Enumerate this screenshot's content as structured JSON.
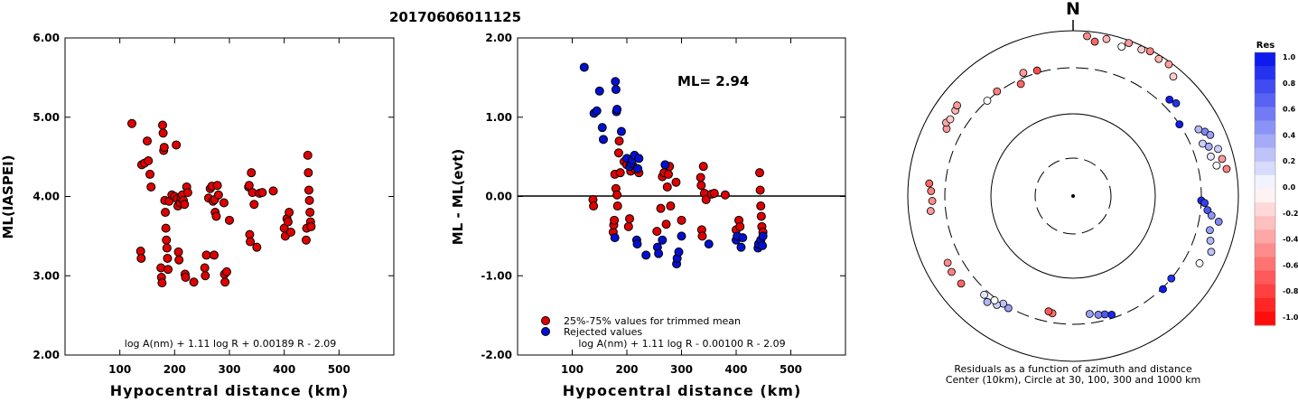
{
  "title": "20170606011125",
  "colors": {
    "red": "#e00000",
    "blue": "#0010d0",
    "axis": "#000000",
    "point_stroke": "#000000"
  },
  "chart_data": [
    {
      "type": "scatter",
      "title": "",
      "xlabel": "Hypocentral distance (km)",
      "ylabel": "ML(IASPEI)",
      "xlim": [
        0,
        600
      ],
      "ylim": [
        2.0,
        6.0
      ],
      "xticks": [
        "100",
        "200",
        "300",
        "400",
        "500"
      ],
      "yticks": [
        "2.00",
        "3.00",
        "4.00",
        "5.00",
        "6.00"
      ],
      "annotation": "log A(nm) + 1.11 log R + 0.00189 R - 2.09",
      "series": [
        {
          "color": "red",
          "points": [
            [
              122,
              4.92
            ],
            [
              138,
              3.31
            ],
            [
              139,
              3.22
            ],
            [
              140,
              4.4
            ],
            [
              145,
              4.42
            ],
            [
              150,
              4.7
            ],
            [
              152,
              4.45
            ],
            [
              155,
              4.28
            ],
            [
              157,
              4.12
            ],
            [
              175,
              3.1
            ],
            [
              176,
              2.98
            ],
            [
              177,
              2.91
            ],
            [
              178,
              4.9
            ],
            [
              179,
              4.8
            ],
            [
              180,
              4.58
            ],
            [
              181,
              4.62
            ],
            [
              182,
              3.95
            ],
            [
              183,
              3.8
            ],
            [
              184,
              3.6
            ],
            [
              185,
              3.45
            ],
            [
              186,
              3.35
            ],
            [
              187,
              3.22
            ],
            [
              188,
              3.08
            ],
            [
              190,
              3.94
            ],
            [
              195,
              4.02
            ],
            [
              200,
              4.0
            ],
            [
              203,
              4.65
            ],
            [
              205,
              3.97
            ],
            [
              206,
              3.88
            ],
            [
              207,
              3.3
            ],
            [
              208,
              3.2
            ],
            [
              210,
              3.92
            ],
            [
              212,
              3.98
            ],
            [
              214,
              4.02
            ],
            [
              216,
              3.95
            ],
            [
              218,
              3.9
            ],
            [
              219,
              3.02
            ],
            [
              220,
              2.98
            ],
            [
              222,
              4.12
            ],
            [
              224,
              4.05
            ],
            [
              235,
              2.92
            ],
            [
              255,
              3.1
            ],
            [
              256,
              3.0
            ],
            [
              258,
              3.26
            ],
            [
              262,
              3.98
            ],
            [
              265,
              4.1
            ],
            [
              268,
              4.13
            ],
            [
              270,
              3.94
            ],
            [
              272,
              3.26
            ],
            [
              273,
              3.96
            ],
            [
              274,
              3.8
            ],
            [
              276,
              3.75
            ],
            [
              278,
              4.14
            ],
            [
              280,
              4.02
            ],
            [
              290,
              3.92
            ],
            [
              291,
              3.02
            ],
            [
              292,
              2.92
            ],
            [
              295,
              3.05
            ],
            [
              300,
              3.7
            ],
            [
              335,
              4.12
            ],
            [
              336,
              4.14
            ],
            [
              337,
              3.52
            ],
            [
              338,
              3.43
            ],
            [
              340,
              4.3
            ],
            [
              342,
              4.05
            ],
            [
              345,
              3.9
            ],
            [
              350,
              3.36
            ],
            [
              355,
              4.04
            ],
            [
              360,
              4.05
            ],
            [
              380,
              4.07
            ],
            [
              400,
              3.6
            ],
            [
              402,
              3.5
            ],
            [
              405,
              3.72
            ],
            [
              407,
              3.68
            ],
            [
              409,
              3.8
            ],
            [
              412,
              3.55
            ],
            [
              440,
              3.45
            ],
            [
              441,
              3.6
            ],
            [
              443,
              4.52
            ],
            [
              444,
              4.3
            ],
            [
              445,
              4.08
            ],
            [
              446,
              3.95
            ],
            [
              447,
              3.8
            ],
            [
              448,
              3.68
            ],
            [
              449,
              3.62
            ]
          ]
        }
      ]
    },
    {
      "type": "scatter",
      "title": "",
      "xlabel": "Hypocentral distance (km)",
      "ylabel": "ML - ML(evt)",
      "xlim": [
        0,
        600
      ],
      "ylim": [
        -2.0,
        2.0
      ],
      "xticks": [
        "100",
        "200",
        "300",
        "400",
        "500"
      ],
      "yticks": [
        "-2.00",
        "-1.00",
        "0.00",
        "1.00",
        "2.00"
      ],
      "ml_label": "ML=  2.94",
      "legend": [
        "25%-75% values for trimmed mean",
        "Rejected values"
      ],
      "annotation": "log A(nm) + 1.11 log R - 0.00100 R - 2.09",
      "series": [
        {
          "name": "25%-75% values for trimmed mean",
          "color": "red",
          "points": [
            [
              138,
              -0.04
            ],
            [
              139,
              -0.12
            ],
            [
              175,
              -0.45
            ],
            [
              176,
              -0.36
            ],
            [
              177,
              -0.3
            ],
            [
              178,
              0.28
            ],
            [
              180,
              0.1
            ],
            [
              182,
              0.02
            ],
            [
              183,
              -0.12
            ],
            [
              185,
              0.55
            ],
            [
              186,
              0.7
            ],
            [
              188,
              0.3
            ],
            [
              195,
              0.44
            ],
            [
              200,
              0.4
            ],
            [
              203,
              -0.38
            ],
            [
              205,
              -0.28
            ],
            [
              207,
              0.32
            ],
            [
              212,
              0.38
            ],
            [
              216,
              0.34
            ],
            [
              222,
              0.3
            ],
            [
              255,
              -0.44
            ],
            [
              262,
              -0.15
            ],
            [
              265,
              0.25
            ],
            [
              268,
              0.3
            ],
            [
              272,
              -0.35
            ],
            [
              274,
              0.12
            ],
            [
              276,
              0.28
            ],
            [
              278,
              0.38
            ],
            [
              280,
              -0.12
            ],
            [
              290,
              0.18
            ],
            [
              300,
              -0.3
            ],
            [
              335,
              0.24
            ],
            [
              336,
              0.14
            ],
            [
              337,
              -0.42
            ],
            [
              338,
              -0.5
            ],
            [
              340,
              0.38
            ],
            [
              342,
              0.04
            ],
            [
              345,
              -0.04
            ],
            [
              355,
              0.03
            ],
            [
              360,
              0.04
            ],
            [
              380,
              0.02
            ],
            [
              400,
              -0.42
            ],
            [
              405,
              -0.3
            ],
            [
              407,
              -0.38
            ],
            [
              443,
              0.3
            ],
            [
              444,
              0.08
            ],
            [
              445,
              -0.12
            ],
            [
              446,
              -0.25
            ],
            [
              447,
              -0.38
            ],
            [
              449,
              -0.45
            ]
          ]
        },
        {
          "name": "Rejected values",
          "color": "blue",
          "points": [
            [
              122,
              1.63
            ],
            [
              140,
              1.05
            ],
            [
              145,
              1.08
            ],
            [
              150,
              1.33
            ],
            [
              155,
              0.87
            ],
            [
              157,
              0.72
            ],
            [
              178,
              -0.52
            ],
            [
              179,
              1.45
            ],
            [
              180,
              1.35
            ],
            [
              181,
              1.07
            ],
            [
              182,
              1.1
            ],
            [
              190,
              0.82
            ],
            [
              200,
              0.48
            ],
            [
              205,
              0.38
            ],
            [
              208,
              0.42
            ],
            [
              210,
              0.46
            ],
            [
              214,
              0.52
            ],
            [
              218,
              -0.55
            ],
            [
              219,
              -0.6
            ],
            [
              220,
              0.35
            ],
            [
              222,
              0.48
            ],
            [
              235,
              -0.74
            ],
            [
              256,
              -0.64
            ],
            [
              258,
              -0.72
            ],
            [
              265,
              -0.55
            ],
            [
              270,
              0.4
            ],
            [
              291,
              -0.85
            ],
            [
              292,
              -0.78
            ],
            [
              295,
              -0.7
            ],
            [
              300,
              -0.5
            ],
            [
              350,
              -0.6
            ],
            [
              400,
              -0.55
            ],
            [
              402,
              -0.5
            ],
            [
              409,
              -0.64
            ],
            [
              412,
              -0.52
            ],
            [
              440,
              -0.65
            ],
            [
              441,
              -0.6
            ],
            [
              445,
              -0.55
            ],
            [
              448,
              -0.62
            ],
            [
              449,
              -0.5
            ]
          ]
        }
      ]
    },
    {
      "type": "scatter",
      "title": "",
      "north_label": "N",
      "caption_line1": "Residuals as a function of azimuth and distance",
      "caption_line2": "Center (10km), Circle at 30, 100, 300 and 1000 km",
      "colorbar_title": "Res",
      "colorbar_ticks": [
        "1.0",
        "0.8",
        "0.6",
        "0.4",
        "0.2",
        "0.0",
        "-0.2",
        "-0.4",
        "-0.6",
        "-0.8",
        "-1.0"
      ],
      "points_azimuth_distance_residual": [
        [
          5,
          440,
          -0.45
        ],
        [
          8,
          420,
          -0.6
        ],
        [
          12,
          440,
          -0.3
        ],
        [
          18,
          425,
          0.0
        ],
        [
          20,
          450,
          -0.4
        ],
        [
          25,
          445,
          -0.2
        ],
        [
          28,
          455,
          -0.5
        ],
        [
          32,
          445,
          -0.3
        ],
        [
          36,
          450,
          -0.38
        ],
        [
          40,
          420,
          -0.2
        ],
        [
          45,
          335,
          0.95
        ],
        [
          48,
          345,
          0.85
        ],
        [
          56,
          300,
          0.95
        ],
        [
          62,
          360,
          0.3
        ],
        [
          64,
          380,
          0.5
        ],
        [
          66,
          395,
          0.4
        ],
        [
          68,
          350,
          0.2
        ],
        [
          70,
          370,
          0.35
        ],
        [
          72,
          405,
          0.2
        ],
        [
          74,
          365,
          0.1
        ],
        [
          76,
          410,
          -0.4
        ],
        [
          78,
          380,
          0.0
        ],
        [
          80,
          420,
          -0.5
        ],
        [
          92,
          300,
          0.9
        ],
        [
          93,
          315,
          0.8
        ],
        [
          96,
          330,
          0.7
        ],
        [
          98,
          350,
          0.45
        ],
        [
          100,
          385,
          0.5
        ],
        [
          104,
          355,
          0.4
        ],
        [
          108,
          370,
          0.3
        ],
        [
          112,
          390,
          0.25
        ],
        [
          118,
          365,
          0.0
        ],
        [
          130,
          300,
          0.85
        ],
        [
          136,
          305,
          0.95
        ],
        [
          162,
          285,
          0.9
        ],
        [
          165,
          275,
          0.7
        ],
        [
          168,
          270,
          0.5
        ],
        [
          172,
          260,
          0.4
        ],
        [
          190,
          260,
          -0.55
        ],
        [
          192,
          255,
          -0.65
        ],
        [
          210,
          305,
          0.4
        ],
        [
          213,
          300,
          0.25
        ],
        [
          215,
          320,
          0.2
        ],
        [
          217,
          310,
          0.0
        ],
        [
          219,
          335,
          0.3
        ],
        [
          222,
          320,
          0.1
        ],
        [
          232,
          360,
          -0.6
        ],
        [
          238,
          365,
          -0.5
        ],
        [
          242,
          360,
          -0.45
        ],
        [
          264,
          365,
          -0.4
        ],
        [
          268,
          355,
          -0.45
        ],
        [
          272,
          360,
          -0.5
        ],
        [
          275,
          370,
          -0.6
        ],
        [
          298,
          365,
          -0.4
        ],
        [
          300,
          380,
          -0.35
        ],
        [
          302,
          372,
          -0.2
        ],
        [
          306,
          375,
          -0.3
        ],
        [
          308,
          382,
          -0.4
        ],
        [
          318,
          300,
          0.0
        ],
        [
          324,
          305,
          -0.5
        ],
        [
          335,
          280,
          -0.6
        ],
        [
          338,
          320,
          -0.4
        ],
        [
          344,
          310,
          -0.7
        ]
      ]
    }
  ]
}
